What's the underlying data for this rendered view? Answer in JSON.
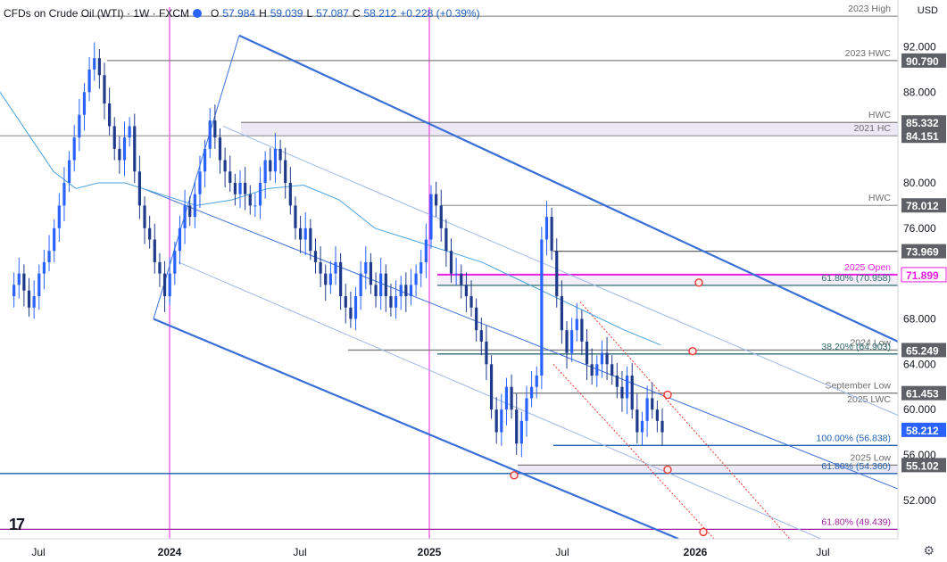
{
  "header": {
    "symbol": "CFDs on Crude Oil (WTI) · 1W · FXCM",
    "ohlc": [
      {
        "label": "O",
        "value": "57.984"
      },
      {
        "label": "H",
        "value": "59.039"
      },
      {
        "label": "L",
        "value": "57.087"
      },
      {
        "label": "C",
        "value": "58.212"
      }
    ],
    "change": "+0.228 (+0.39%)",
    "currency": "USD"
  },
  "chart_data": {
    "type": "candlestick",
    "y_axis": {
      "range": [
        48.6,
        95.5
      ],
      "ticks": [
        "92.000",
        "88.000",
        "84.000",
        "80.000",
        "76.000",
        "72.000",
        "68.000",
        "64.000",
        "60.000",
        "56.000",
        "52.000"
      ]
    },
    "x_axis": {
      "ticks": [
        "Jul",
        "2024",
        "Jul",
        "2025",
        "Jul",
        "2026",
        "Jul"
      ]
    },
    "last_price": {
      "value": 58.212,
      "label": "58.212",
      "color": "#2962ff"
    },
    "levels": [
      {
        "price": 94.7,
        "label": "2023 High",
        "price_label": "",
        "color": "#9e9e9e"
      },
      {
        "price": 90.79,
        "label": "2023 HWC",
        "price_label": "90.790",
        "color": "#808080"
      },
      {
        "price": 85.332,
        "label": "HWC",
        "price_label": "85.332",
        "color": "#808080"
      },
      {
        "price": 84.151,
        "label": "2021 HC",
        "price_label": "84.151",
        "color": "#9e9e9e"
      },
      {
        "price": 78.012,
        "label": "HWC",
        "price_label": "78.012",
        "color": "#9e9e9e"
      },
      {
        "price": 73.969,
        "label": "",
        "price_label": "73.969",
        "color": "#616161"
      },
      {
        "price": 71.899,
        "label": "2025 Open",
        "price_label": "71.899",
        "color": "#e91ee2"
      },
      {
        "price": 70.958,
        "label": "61.80% (70.958)",
        "price_label": "",
        "color": "#2e6b70"
      },
      {
        "price": 65.249,
        "label": "2024 Low",
        "price_label": "65.249",
        "color": "#808080"
      },
      {
        "price": 64.903,
        "label": "38.20% (64.903)",
        "price_label": "",
        "color": "#2e6b70"
      },
      {
        "price": 61.453,
        "label": "September Low",
        "price_label": "61.453",
        "color": "#808080"
      },
      {
        "price": 56.838,
        "label": "100.00% (56.838)",
        "price_label": "",
        "color": "#1e5fb0"
      },
      {
        "price": 55.102,
        "label": "2025 Low",
        "price_label": "55.102",
        "color": "#808080"
      },
      {
        "price": 54.36,
        "label": "61.80% (54.360)",
        "price_label": "",
        "color": "#1e5fb0"
      },
      {
        "price": 49.439,
        "label": "61.80% (49.439)",
        "price_label": "",
        "color": "#a020a0"
      }
    ],
    "extra_labels": [
      {
        "price": 60.5,
        "label": "2025 LWC"
      }
    ],
    "colors": {
      "up": "#2962ff",
      "down": "#1e3a8a",
      "channel": "#3a6fd8",
      "ma": "#4aa3df",
      "magenta": "#e91ee2",
      "red": "#e53935"
    }
  }
}
